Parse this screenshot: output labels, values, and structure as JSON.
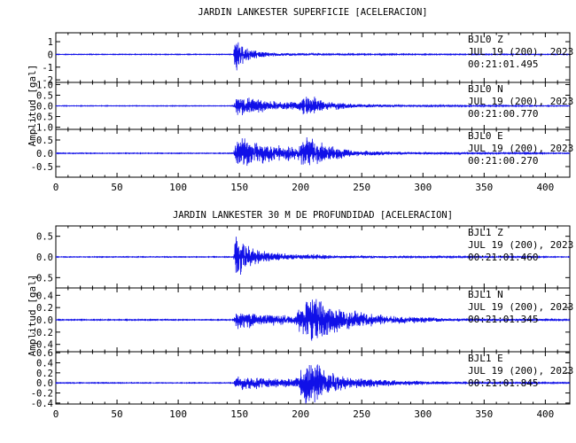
{
  "chart_data": [
    {
      "type": "line",
      "title": "JARDIN LANKESTER SUPERFICIE [ACELERACION]",
      "ylabel": "Amplitud [gal]",
      "xlim": [
        0,
        420
      ],
      "x_ticks": [
        0,
        50,
        100,
        150,
        200,
        250,
        300,
        350,
        400
      ],
      "line_color": "#1010e8",
      "traces": [
        {
          "station": "BJL0",
          "component": "Z",
          "date": "JUL 19 (200), 2023",
          "time": "00:21:01.495",
          "ylim": [
            -2.2,
            1.7
          ],
          "y_ticks": [
            "1",
            "0",
            "-1",
            "-2"
          ],
          "noise": 0.03,
          "envelope": [
            [
              0,
              0.03
            ],
            [
              145,
              0.03
            ],
            [
              147,
              1.6
            ],
            [
              150,
              1.1
            ],
            [
              155,
              0.6
            ],
            [
              165,
              0.3
            ],
            [
              180,
              0.15
            ],
            [
              200,
              0.1
            ],
            [
              210,
              0.12
            ],
            [
              230,
              0.06
            ],
            [
              300,
              0.04
            ],
            [
              420,
              0.03
            ]
          ]
        },
        {
          "station": "BJL0",
          "component": "N",
          "date": "JUL 19 (200), 2023",
          "time": "00:21:00.770",
          "ylim": [
            -1.1,
            1.1
          ],
          "y_ticks": [
            "1.0",
            "0.5",
            "0.0",
            "-0.5",
            "-1.0"
          ],
          "noise": 0.015,
          "envelope": [
            [
              0,
              0.015
            ],
            [
              145,
              0.015
            ],
            [
              148,
              0.5
            ],
            [
              153,
              0.55
            ],
            [
              165,
              0.35
            ],
            [
              180,
              0.25
            ],
            [
              198,
              0.2
            ],
            [
              203,
              0.55
            ],
            [
              210,
              0.5
            ],
            [
              220,
              0.25
            ],
            [
              240,
              0.12
            ],
            [
              280,
              0.05
            ],
            [
              420,
              0.015
            ]
          ]
        },
        {
          "station": "BJL0",
          "component": "E",
          "date": "JUL 19 (200), 2023",
          "time": "00:21:00.270",
          "ylim": [
            -0.9,
            0.9
          ],
          "y_ticks": [
            "0.5",
            "0.0",
            "-0.5"
          ],
          "noise": 0.015,
          "envelope": [
            [
              0,
              0.015
            ],
            [
              145,
              0.015
            ],
            [
              148,
              0.6
            ],
            [
              153,
              0.7
            ],
            [
              165,
              0.45
            ],
            [
              180,
              0.35
            ],
            [
              198,
              0.3
            ],
            [
              203,
              0.7
            ],
            [
              210,
              0.6
            ],
            [
              222,
              0.3
            ],
            [
              245,
              0.12
            ],
            [
              290,
              0.05
            ],
            [
              420,
              0.015
            ]
          ]
        }
      ]
    },
    {
      "type": "line",
      "title": "JARDIN LANKESTER 30 M DE PROFUNDIDAD [ACELERACION]",
      "ylabel": "Amplitud [gal]",
      "xlim": [
        0,
        420
      ],
      "x_ticks": [
        0,
        50,
        100,
        150,
        200,
        250,
        300,
        350,
        400
      ],
      "line_color": "#1010e8",
      "traces": [
        {
          "station": "BJL1",
          "component": "Z",
          "date": "JUL 19 (200), 2023",
          "time": "00:21:01.460",
          "ylim": [
            -0.75,
            0.75
          ],
          "y_ticks": [
            "0.5",
            "0.0",
            "-0.5"
          ],
          "noise": 0.01,
          "envelope": [
            [
              0,
              0.01
            ],
            [
              145,
              0.01
            ],
            [
              147,
              0.68
            ],
            [
              152,
              0.45
            ],
            [
              160,
              0.25
            ],
            [
              175,
              0.12
            ],
            [
              200,
              0.06
            ],
            [
              205,
              0.09
            ],
            [
              230,
              0.04
            ],
            [
              300,
              0.02
            ],
            [
              420,
              0.01
            ]
          ]
        },
        {
          "station": "BJL1",
          "component": "N",
          "date": "JUL 19 (200), 2023",
          "time": "00:21:01.345",
          "ylim": [
            -0.52,
            0.52
          ],
          "y_ticks": [
            "0.4",
            "0.2",
            "0.0",
            "-0.2",
            "-0.4"
          ],
          "noise": 0.008,
          "envelope": [
            [
              0,
              0.008
            ],
            [
              145,
              0.008
            ],
            [
              148,
              0.18
            ],
            [
              155,
              0.16
            ],
            [
              170,
              0.1
            ],
            [
              195,
              0.08
            ],
            [
              203,
              0.35
            ],
            [
              210,
              0.45
            ],
            [
              220,
              0.3
            ],
            [
              240,
              0.18
            ],
            [
              270,
              0.08
            ],
            [
              320,
              0.03
            ],
            [
              420,
              0.01
            ]
          ]
        },
        {
          "station": "BJL1",
          "component": "E",
          "date": "JUL 19 (200), 2023",
          "time": "00:21:01.845",
          "ylim": [
            -0.42,
            0.62
          ],
          "y_ticks": [
            "0.6",
            "0.4",
            "0.2",
            "0.0",
            "-0.2",
            "-0.4"
          ],
          "noise": 0.008,
          "envelope": [
            [
              0,
              0.008
            ],
            [
              145,
              0.008
            ],
            [
              148,
              0.15
            ],
            [
              155,
              0.16
            ],
            [
              170,
              0.1
            ],
            [
              195,
              0.1
            ],
            [
              203,
              0.4
            ],
            [
              210,
              0.55
            ],
            [
              220,
              0.28
            ],
            [
              240,
              0.12
            ],
            [
              280,
              0.06
            ],
            [
              340,
              0.02
            ],
            [
              420,
              0.01
            ]
          ]
        }
      ]
    }
  ]
}
